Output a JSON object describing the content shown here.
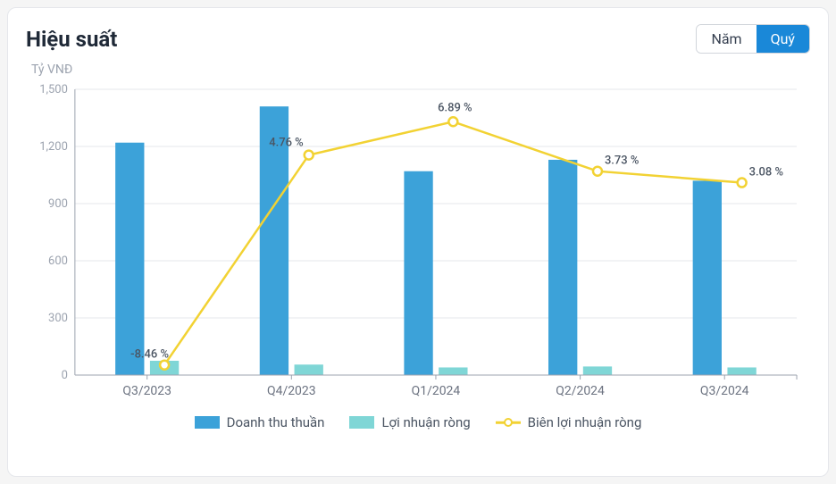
{
  "title": "Hiệu suất",
  "toggle": {
    "year_label": "Năm",
    "quarter_label": "Quý",
    "active": "quarter"
  },
  "y_unit_label": "Tỷ VNĐ",
  "chart": {
    "type": "bar+line",
    "categories": [
      "Q3/2023",
      "Q4/2023",
      "Q1/2024",
      "Q2/2024",
      "Q3/2024"
    ],
    "series_bar1": {
      "name": "Doanh thu thuần",
      "values": [
        1220,
        1410,
        1070,
        1130,
        1020
      ],
      "color": "#3ca2d9"
    },
    "series_bar2": {
      "name": "Lợi nhuận ròng",
      "values": [
        75,
        55,
        40,
        45,
        40
      ],
      "color": "#7fd6d6"
    },
    "series_line": {
      "name": "Biên lợi nhuận ròng",
      "values_pct": [
        -8.46,
        4.76,
        6.89,
        3.73,
        3.08
      ],
      "labels": [
        "-8.46 %",
        "4.76 %",
        "6.89 %",
        "3.73 %",
        "3.08 %"
      ],
      "line_positions": [
        53,
        1155,
        1330,
        1070,
        1010
      ],
      "color": "#f2d233",
      "marker_fill": "#ffffff"
    },
    "y_axis": {
      "min": 0,
      "max": 1500,
      "tick_step": 300,
      "ticks": [
        0,
        300,
        600,
        900,
        1200,
        1500
      ],
      "tick_labels": [
        "0",
        "300",
        "600",
        "900",
        "1,200",
        "1,500"
      ]
    },
    "background_color": "#ffffff",
    "grid_color": "#e5e7eb",
    "axis_color": "#9ca3af",
    "bar_width_ratio": 0.2,
    "bar_gap_ratio": 0.04
  },
  "legend": {
    "items": [
      {
        "label": "Doanh thu thuần",
        "color": "#3ca2d9",
        "type": "swatch"
      },
      {
        "label": "Lợi nhuận ròng",
        "color": "#7fd6d6",
        "type": "swatch"
      },
      {
        "label": "Biên lợi nhuận ròng",
        "color": "#f2d233",
        "type": "line-marker"
      }
    ]
  }
}
